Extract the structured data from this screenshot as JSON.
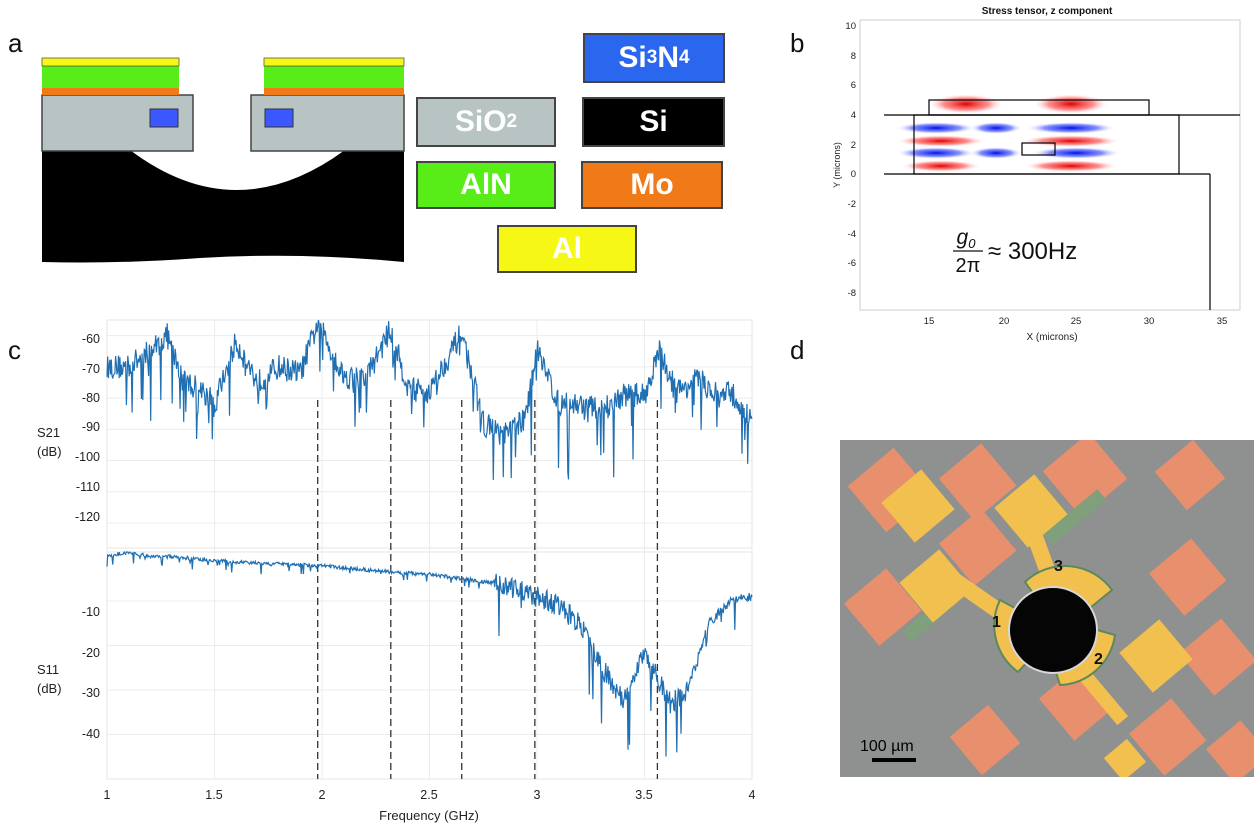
{
  "panels": {
    "a": {
      "letter": "a",
      "legend": {
        "si3n4": {
          "main": "Si",
          "sub1": "3",
          "mid": "N",
          "sub2": "4",
          "color": "#2b66ee"
        },
        "sio2": {
          "main": "SiO",
          "sub": "2",
          "color": "#b8c3c3"
        },
        "si": {
          "label": "Si",
          "color": "#000000"
        },
        "aln": {
          "label": "AlN",
          "color": "#58ec18"
        },
        "mo": {
          "label": "Mo",
          "color": "#f07a18"
        },
        "al": {
          "label": "Al",
          "color": "#f7f716"
        }
      }
    },
    "b": {
      "letter": "b",
      "title": "Stress tensor, z component",
      "xlabel": "X (microns)",
      "ylabel": "Y (microns)",
      "xticks": [
        "15",
        "20",
        "25",
        "30",
        "35"
      ],
      "yticks": [
        "10",
        "8",
        "6",
        "4",
        "2",
        "0",
        "-2",
        "-4",
        "-6",
        "-8"
      ],
      "equation": "≈ 300Hz",
      "eq_num": "g",
      "eq_num_sub": "0",
      "eq_den": "2π"
    },
    "c": {
      "letter": "c",
      "top_ylabel_1": "S21",
      "top_ylabel_2": "(dB)",
      "bottom_ylabel_1": "S11",
      "bottom_ylabel_2": "(dB)",
      "top_yticks": [
        "-60",
        "-70",
        "-80",
        "-90",
        "-100",
        "-110",
        "-120"
      ],
      "bottom_yticks": [
        "-10",
        "-20",
        "-30",
        "-40"
      ],
      "xticks": [
        "1",
        "1.5",
        "2",
        "2.5",
        "3",
        "3.5",
        "4"
      ],
      "xlabel": "Frequency (GHz)"
    },
    "d": {
      "letter": "d",
      "labels": [
        "1",
        "2",
        "3"
      ],
      "scalebar": "100 µm"
    }
  },
  "chart_data": [
    {
      "type": "line",
      "title": "",
      "xlabel": "Frequency (GHz)",
      "ylabel": "S21 (dB)",
      "xlim": [
        1,
        4
      ],
      "ylim": [
        -128,
        -55
      ],
      "grid": true,
      "series": [
        {
          "name": "",
          "color": "#1f6fb2",
          "x": [
            1.0,
            1.1,
            1.2,
            1.28,
            1.35,
            1.45,
            1.5,
            1.6,
            1.7,
            1.8,
            1.9,
            1.98,
            2.1,
            2.2,
            2.32,
            2.4,
            2.5,
            2.65,
            2.75,
            2.85,
            2.95,
            3.0,
            3.1,
            3.2,
            3.3,
            3.4,
            3.5,
            3.57,
            3.65,
            3.75,
            3.85,
            3.9,
            4.0
          ],
          "values": [
            -70,
            -70,
            -65,
            -60,
            -74,
            -78,
            -82,
            -62,
            -75,
            -70,
            -72,
            -56,
            -73,
            -74,
            -58,
            -77,
            -78,
            -59,
            -88,
            -92,
            -86,
            -63,
            -82,
            -82,
            -84,
            -79,
            -79,
            -65,
            -78,
            -74,
            -80,
            -78,
            -88
          ]
        }
      ],
      "vlines": [
        1.98,
        2.32,
        2.65,
        2.99,
        3.56
      ]
    },
    {
      "type": "line",
      "title": "",
      "xlabel": "Frequency (GHz)",
      "ylabel": "S11 (dB)",
      "xlim": [
        1,
        4
      ],
      "ylim": [
        -50,
        1
      ],
      "grid": true,
      "series": [
        {
          "name": "",
          "color": "#1f6fb2",
          "x": [
            1.0,
            1.1,
            1.2,
            1.3,
            1.5,
            1.7,
            1.98,
            2.2,
            2.32,
            2.5,
            2.65,
            2.8,
            3.0,
            3.1,
            3.2,
            3.3,
            3.4,
            3.5,
            3.57,
            3.62,
            3.7,
            3.8,
            3.9,
            4.0
          ],
          "values": [
            0,
            1,
            0,
            0,
            -1,
            -1.5,
            -2,
            -3,
            -3.5,
            -4,
            -5,
            -6,
            -9,
            -11,
            -15,
            -25,
            -32,
            -22,
            -28,
            -33,
            -30,
            -15,
            -10,
            -9
          ]
        }
      ],
      "vlines": [
        1.98,
        2.32,
        2.65,
        2.99,
        3.56
      ]
    }
  ]
}
